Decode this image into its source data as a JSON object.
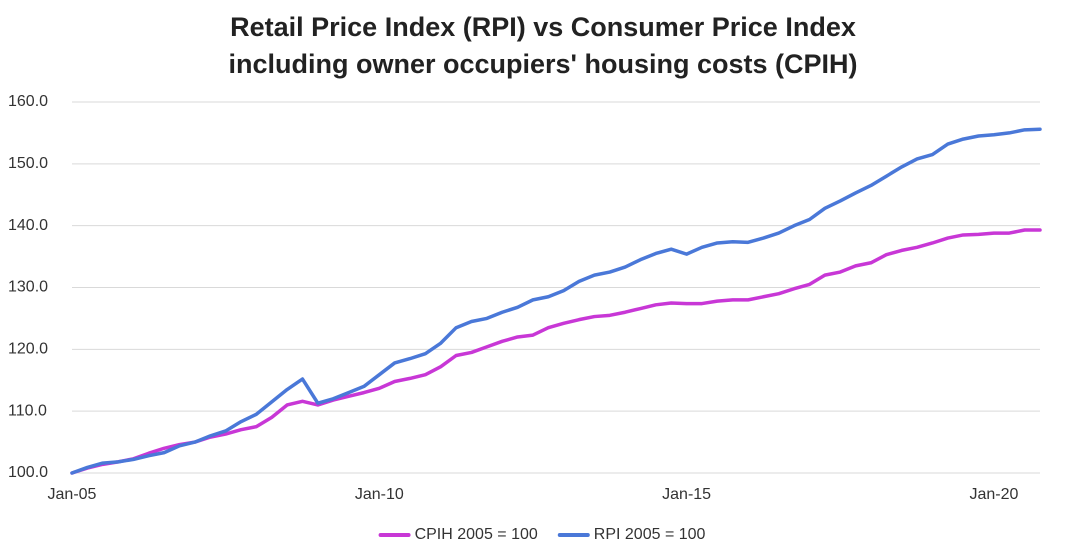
{
  "chart_data": {
    "type": "line",
    "title": [
      "Retail Price Index (RPI) vs Consumer Price Index",
      "including owner occupiers' housing costs (CPIH)"
    ],
    "categories": [
      "Jan-05",
      null,
      null,
      null,
      null,
      null,
      null,
      null,
      null,
      null,
      null,
      null,
      null,
      null,
      null,
      null,
      null,
      null,
      null,
      null,
      "Jan-10",
      null,
      null,
      null,
      null,
      null,
      null,
      null,
      null,
      null,
      null,
      null,
      null,
      null,
      null,
      null,
      null,
      null,
      null,
      null,
      "Jan-15",
      null,
      null,
      null,
      null,
      null,
      null,
      null,
      null,
      null,
      null,
      null,
      null,
      null,
      null,
      null,
      null,
      null,
      null,
      null,
      "Jan-20",
      null,
      null,
      null
    ],
    "series": [
      {
        "name": "CPIH 2005 = 100",
        "color": "#c837d6",
        "values": [
          100,
          100.8,
          101.4,
          101.8,
          102.3,
          103.2,
          104.0,
          104.6,
          105.0,
          105.8,
          106.3,
          107.0,
          107.5,
          109.0,
          111.0,
          111.6,
          111.0,
          111.8,
          112.4,
          113.0,
          113.7,
          114.8,
          115.3,
          115.9,
          117.2,
          119.0,
          119.5,
          120.4,
          121.3,
          122.0,
          122.3,
          123.5,
          124.2,
          124.8,
          125.3,
          125.5,
          126.0,
          126.6,
          127.2,
          127.5,
          127.4,
          127.4,
          127.8,
          128.0,
          128.0,
          128.5,
          129.0,
          129.8,
          130.5,
          132.0,
          132.5,
          133.5,
          134.0,
          135.3,
          136.0,
          136.5,
          137.2,
          138.0,
          138.5,
          138.6,
          138.8,
          138.8,
          139.3,
          139.3
        ]
      },
      {
        "name": "RPI 2005 = 100",
        "color": "#4a78d8",
        "values": [
          100,
          100.9,
          101.6,
          101.8,
          102.2,
          102.8,
          103.3,
          104.4,
          105.0,
          106.0,
          106.8,
          108.3,
          109.5,
          111.5,
          113.5,
          115.2,
          111.3,
          112.0,
          113.0,
          114.0,
          115.9,
          117.8,
          118.5,
          119.3,
          121.0,
          123.5,
          124.5,
          125.0,
          126.0,
          126.8,
          128.0,
          128.5,
          129.5,
          131.0,
          132.0,
          132.5,
          133.3,
          134.5,
          135.5,
          136.2,
          135.4,
          136.5,
          137.2,
          137.4,
          137.3,
          138.0,
          138.8,
          140.0,
          141.0,
          142.8,
          144.0,
          145.3,
          146.5,
          148.0,
          149.5,
          150.8,
          151.5,
          153.2,
          154.0,
          154.5,
          154.7,
          155.0,
          155.5,
          155.6
        ]
      }
    ],
    "ylim": [
      100,
      160
    ],
    "yticks": [
      {
        "value": 100,
        "label": "100.0"
      },
      {
        "value": 110,
        "label": "110.0"
      },
      {
        "value": 120,
        "label": "120.0"
      },
      {
        "value": 130,
        "label": "130.0"
      },
      {
        "value": 140,
        "label": "140.0"
      },
      {
        "value": 150,
        "label": "150.0"
      },
      {
        "value": 160,
        "label": "160.0"
      }
    ],
    "grid": true,
    "legend": "bottom"
  }
}
